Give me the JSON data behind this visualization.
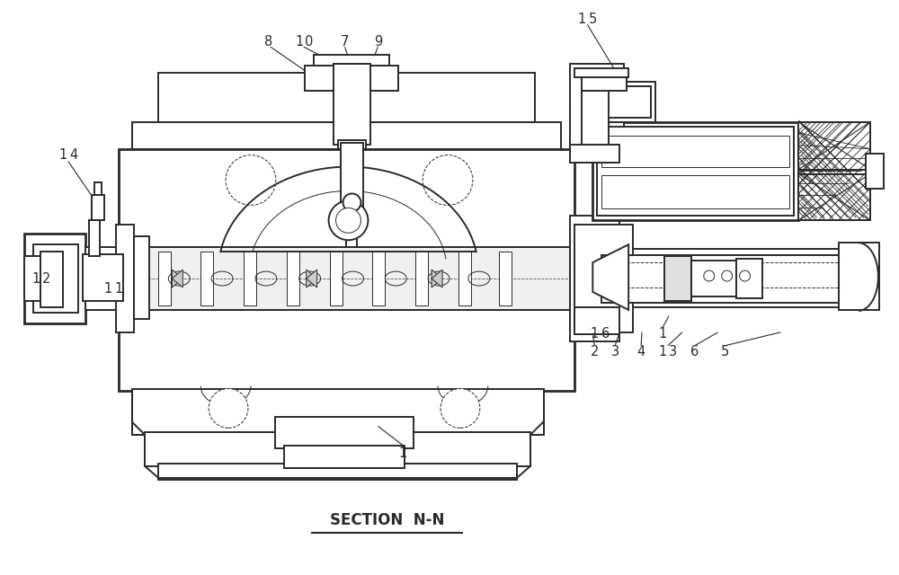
{
  "background_color": "#ffffff",
  "line_color": "#2a2a2a",
  "title": "SECTION  N-N",
  "title_fontsize": 12,
  "label_fontsize": 10.5,
  "lw_main": 1.4,
  "lw_thick": 2.0,
  "lw_thin": 0.7
}
